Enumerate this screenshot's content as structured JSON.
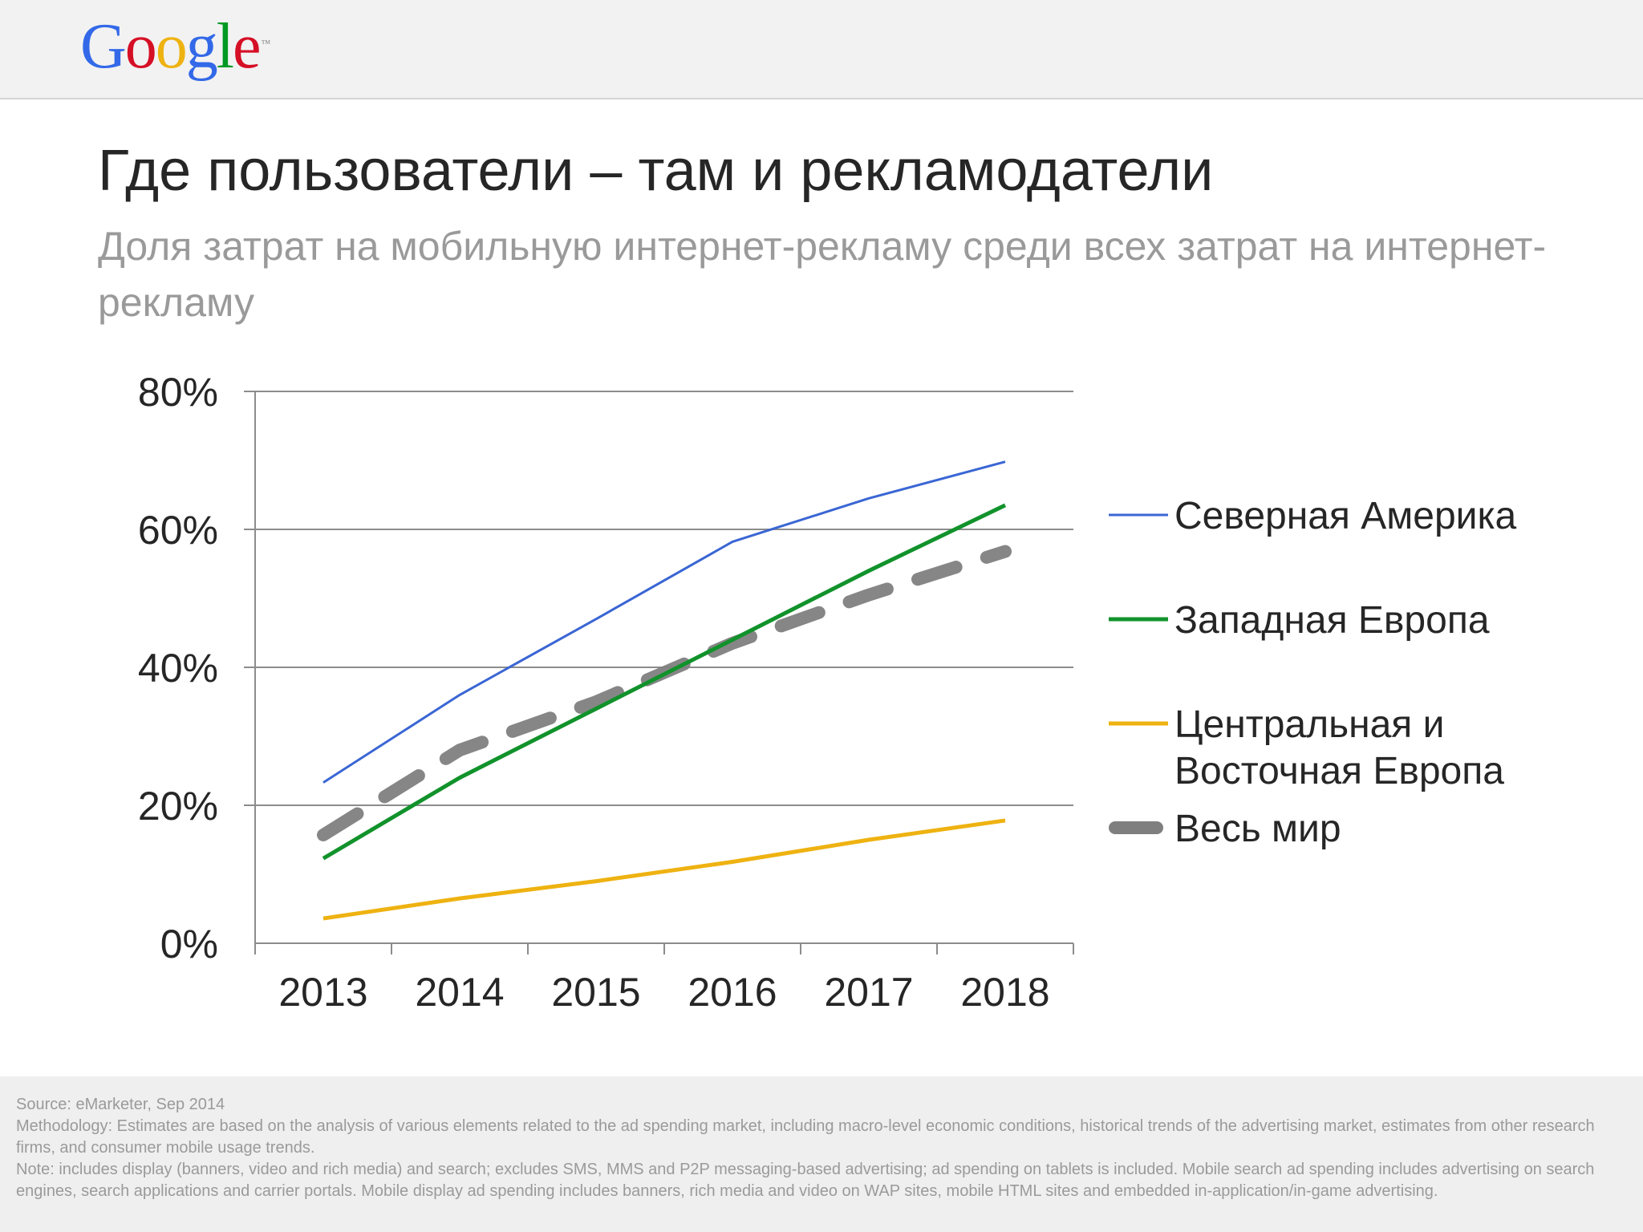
{
  "header": {
    "logo_letters": [
      {
        "ch": "G",
        "color": "#3369e8"
      },
      {
        "ch": "o",
        "color": "#d50f25"
      },
      {
        "ch": "o",
        "color": "#eeb211"
      },
      {
        "ch": "g",
        "color": "#3369e8"
      },
      {
        "ch": "l",
        "color": "#009925"
      },
      {
        "ch": "e",
        "color": "#d50f25"
      }
    ],
    "logo_tm": "™"
  },
  "slide": {
    "title": "Где пользователи – там и рекламодатели",
    "subtitle": "Доля затрат на мобильную интернет-рекламу среди всех затрат на интернет-рекламу"
  },
  "chart_data": {
    "type": "line",
    "title": "",
    "xlabel": "",
    "ylabel": "",
    "x": [
      "2013",
      "2014",
      "2015",
      "2016",
      "2017",
      "2018"
    ],
    "y_ticks": [
      "0%",
      "20%",
      "40%",
      "60%",
      "80%"
    ],
    "y_tick_values": [
      0,
      20,
      40,
      60,
      80
    ],
    "ylim": [
      0,
      80
    ],
    "grid": true,
    "legend_position": "right",
    "series": [
      {
        "name": "Северная Америка",
        "color": "#3a66d4",
        "dashed": false,
        "values": [
          23.3,
          36.0,
          47.0,
          58.2,
          64.5,
          69.8
        ]
      },
      {
        "name": "Западная Европа",
        "color": "#11922b",
        "dashed": false,
        "values": [
          12.3,
          24.0,
          34.0,
          44.0,
          54.0,
          63.5
        ]
      },
      {
        "name": "Центральная и Восточная Европа",
        "name_lines": [
          "Центральная и",
          "Восточная Европа"
        ],
        "color": "#eeb211",
        "dashed": false,
        "values": [
          3.6,
          6.5,
          9.0,
          11.8,
          15.0,
          17.8
        ]
      },
      {
        "name": "Весь мир",
        "color": "#7f7f7f",
        "dashed": true,
        "values": [
          15.7,
          28.0,
          35.0,
          43.5,
          50.5,
          56.8
        ]
      }
    ]
  },
  "footer": {
    "source": "Source: eMarketer, Sep 2014",
    "methodology": "Methodology: Estimates are based on the analysis of various elements related to the ad spending market, including macro-level economic conditions, historical trends of the advertising market, estimates from other research firms, and consumer mobile usage trends.",
    "note": "Note: includes display (banners, video and rich media) and search; excludes SMS, MMS and P2P messaging-based advertising; ad spending on tablets is included. Mobile search ad spending includes advertising on search engines, search applications and carrier portals. Mobile display ad spending includes banners, rich media and video on WAP sites, mobile HTML sites and embedded in-application/in-game advertising."
  }
}
